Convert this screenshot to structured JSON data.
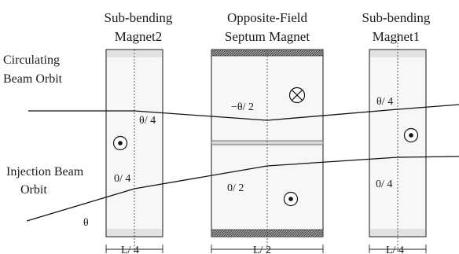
{
  "magnets": {
    "sub2": {
      "name_line1": "Sub-bending",
      "name_line2": "Magnet2",
      "length": "L/ 4"
    },
    "septum": {
      "name_line1": "Opposite-Field",
      "name_line2": "Septum Magnet",
      "length": "L/ 2"
    },
    "sub1": {
      "name_line1": "Sub-bending",
      "name_line2": "Magnet1",
      "length": "L/ 4"
    }
  },
  "beams": {
    "circulating": {
      "line1": "Circulating",
      "line2": "Beam Orbit"
    },
    "injection": {
      "line1": "Injection Beam",
      "line2": "Orbit"
    }
  },
  "angles": {
    "circ_sub2": "θ/ 4",
    "circ_septum": "−θ/ 2",
    "circ_sub1": "θ/ 4",
    "inj_sub2": "0/ 4",
    "inj_septum": "0/ 2",
    "inj_sub1": "0/ 4",
    "inj_entry": "θ"
  },
  "field_symbols": {
    "sub2": "dot-circle-icon",
    "septum_upper": "cross-circle-icon",
    "septum_lower": "dot-circle-icon",
    "sub1": "dot-circle-icon"
  }
}
